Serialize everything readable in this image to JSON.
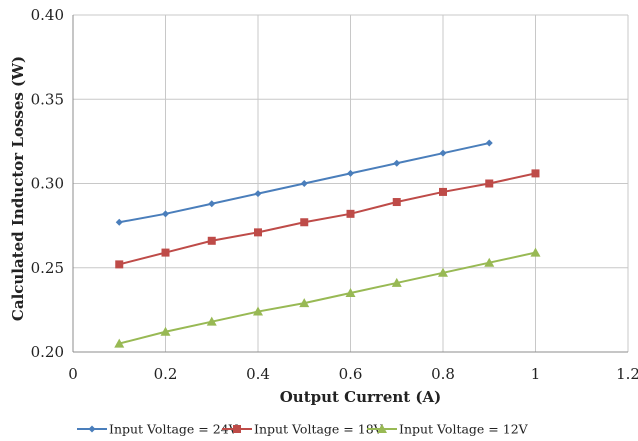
{
  "chart_data": {
    "type": "line",
    "xlabel": "Output Current (A)",
    "ylabel": "Calculated Inductor Losses (W)",
    "xlim": [
      0,
      1.2
    ],
    "ylim": [
      0.2,
      0.4
    ],
    "xticks": [
      0,
      0.2,
      0.4,
      0.6,
      0.8,
      1,
      1.2
    ],
    "xtick_labels": [
      "0",
      "0.2",
      "0.4",
      "0.6",
      "0.8",
      "1",
      "1.2"
    ],
    "yticks": [
      0.2,
      0.25,
      0.3,
      0.35,
      0.4
    ],
    "ytick_labels": [
      "0.20",
      "0.25",
      "0.30",
      "0.35",
      "0.40"
    ],
    "grid": true,
    "legend_position": "bottom",
    "series": [
      {
        "name": "Input Voltage = 24V",
        "color": "#4a7ebb",
        "marker": "diamond",
        "x": [
          0.1,
          0.2,
          0.3,
          0.4,
          0.5,
          0.6,
          0.7,
          0.8,
          0.9
        ],
        "y": [
          0.277,
          0.282,
          0.288,
          0.294,
          0.3,
          0.306,
          0.312,
          0.318,
          0.324
        ]
      },
      {
        "name": "Input Voltage = 18V",
        "color": "#be4b48",
        "marker": "square",
        "x": [
          0.1,
          0.2,
          0.3,
          0.4,
          0.5,
          0.6,
          0.7,
          0.8,
          0.9,
          1.0
        ],
        "y": [
          0.252,
          0.259,
          0.266,
          0.271,
          0.277,
          0.282,
          0.289,
          0.295,
          0.3,
          0.306
        ]
      },
      {
        "name": "Input Voltage = 12V",
        "color": "#98b954",
        "marker": "triangle",
        "x": [
          0.1,
          0.2,
          0.3,
          0.4,
          0.5,
          0.6,
          0.7,
          0.8,
          0.9,
          1.0
        ],
        "y": [
          0.205,
          0.212,
          0.218,
          0.224,
          0.229,
          0.235,
          0.241,
          0.247,
          0.253,
          0.259
        ]
      }
    ]
  }
}
